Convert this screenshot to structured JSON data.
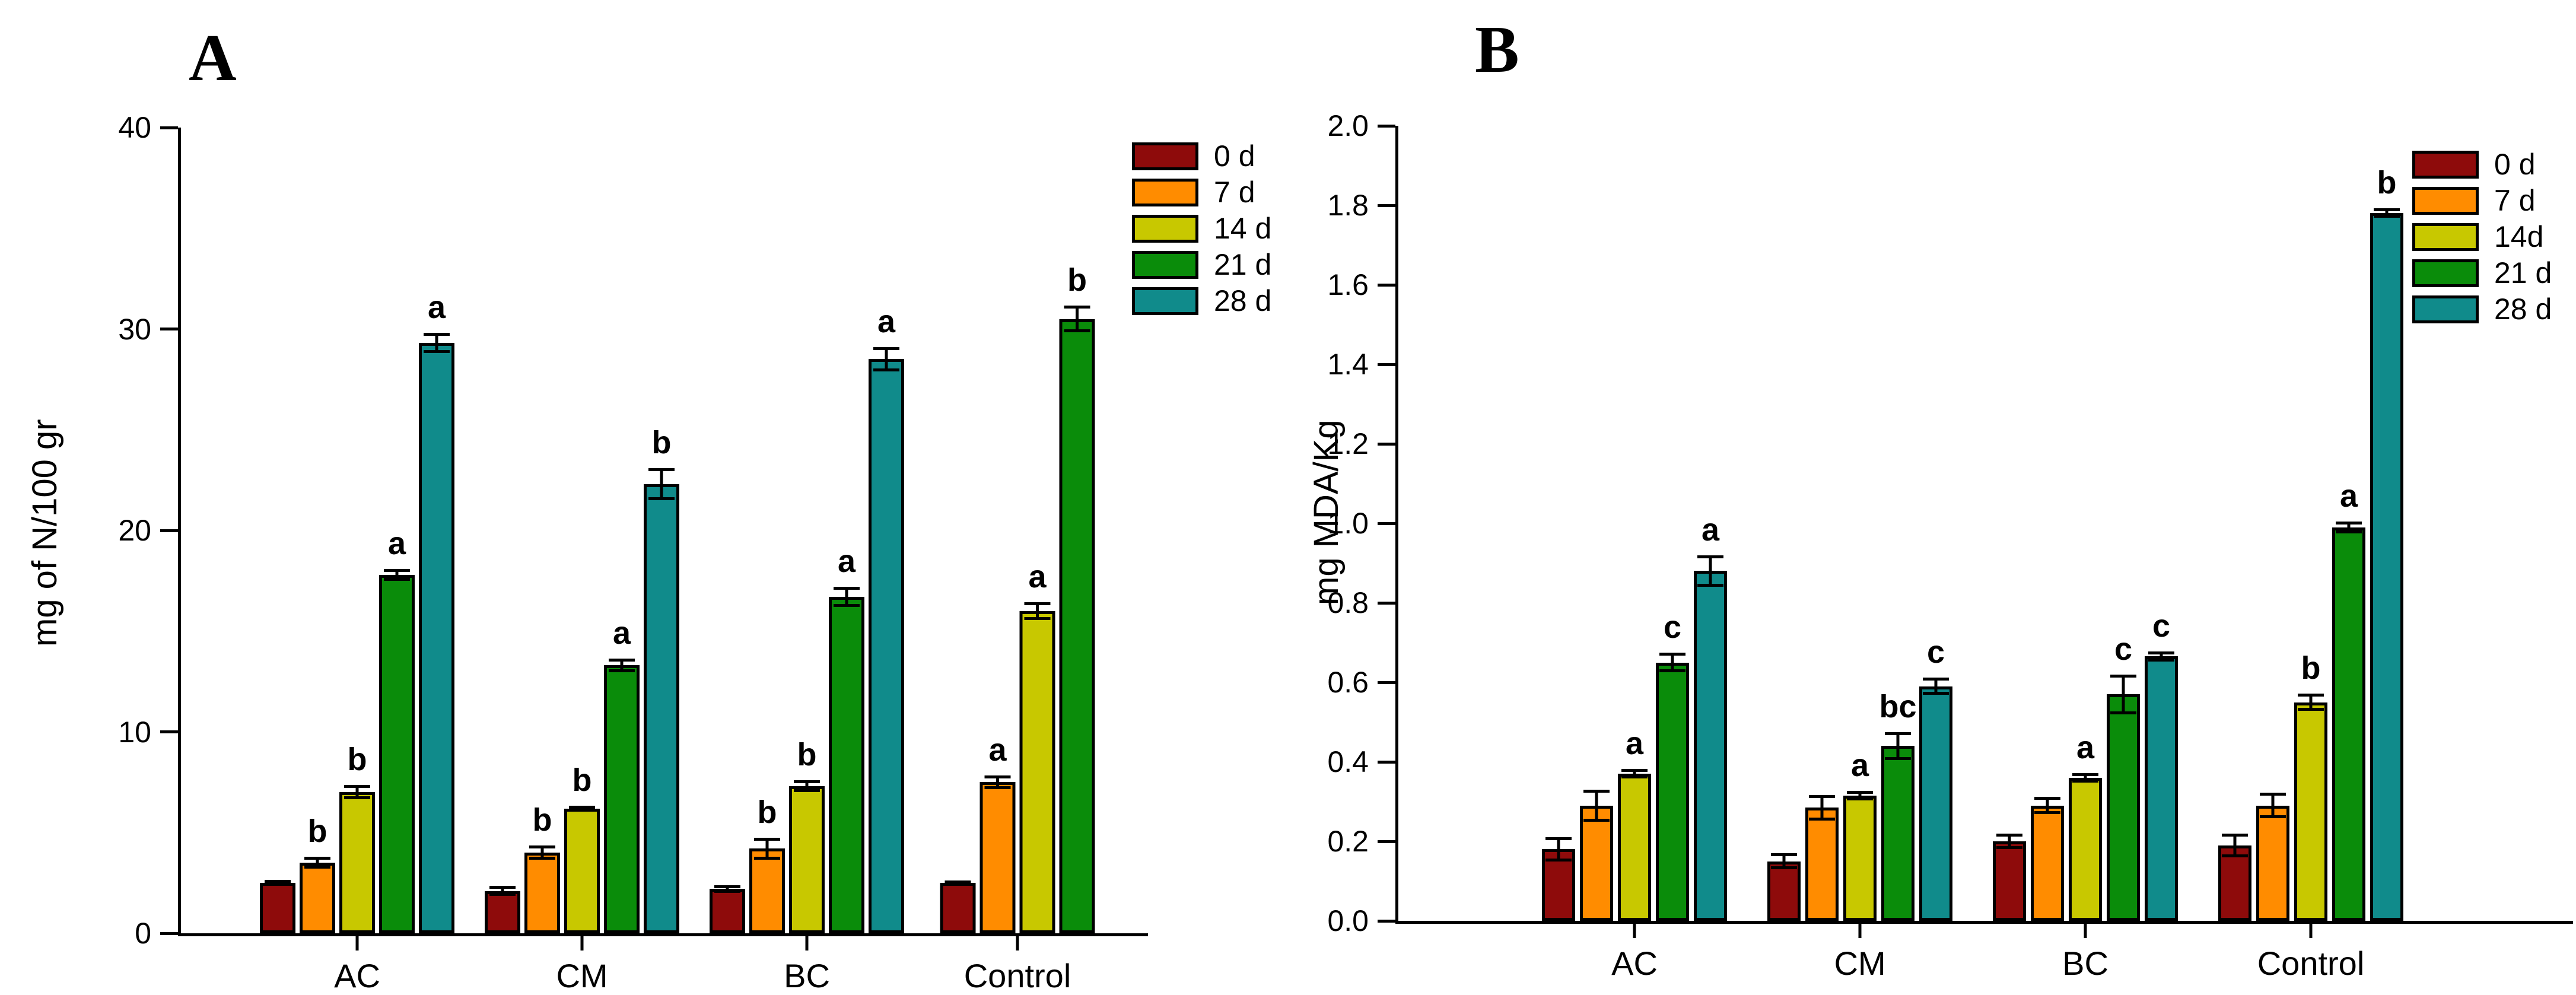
{
  "chart_data": [
    {
      "type": "bar",
      "panel": "A",
      "title": "A",
      "ylabel": "mg of N/100 gr",
      "xlabel": "",
      "ylim": [
        0,
        40
      ],
      "y_ticks": [
        "0",
        "10",
        "20",
        "30",
        "40"
      ],
      "y_tick_values": [
        0,
        10,
        20,
        30,
        40
      ],
      "categories": [
        "AC",
        "CM",
        "BC",
        "Control"
      ],
      "grid": false,
      "legend_position": "top-right",
      "series": [
        {
          "name": "0 d",
          "color": "#8E0B0B",
          "values": [
            2.5,
            2.1,
            2.2,
            2.5
          ],
          "errors": [
            0.15,
            0.25,
            0.2,
            0.12
          ],
          "letters": [
            "",
            "",
            "",
            ""
          ]
        },
        {
          "name": "7 d",
          "color": "#FF8C00",
          "values": [
            3.5,
            4.0,
            4.2,
            7.5
          ],
          "errors": [
            0.3,
            0.35,
            0.55,
            0.35
          ],
          "letters": [
            "b",
            "b",
            "b",
            "a"
          ]
        },
        {
          "name": "14 d",
          "color": "#C8C800",
          "values": [
            7.0,
            6.2,
            7.3,
            16.0
          ],
          "errors": [
            0.35,
            0.12,
            0.3,
            0.45
          ],
          "letters": [
            "b",
            "b",
            "b",
            "a"
          ]
        },
        {
          "name": "21 d",
          "color": "#0A8C0A",
          "values": [
            17.8,
            13.3,
            16.7,
            30.5
          ],
          "errors": [
            0.3,
            0.35,
            0.5,
            0.65
          ],
          "letters": [
            "a",
            "a",
            "a",
            "b"
          ]
        },
        {
          "name": "28 d",
          "color": "#108B8B",
          "values": [
            29.3,
            22.3,
            28.5,
            null
          ],
          "errors": [
            0.5,
            0.8,
            0.6,
            null
          ],
          "letters": [
            "a",
            "b",
            "a",
            ""
          ]
        }
      ]
    },
    {
      "type": "bar",
      "panel": "B",
      "title": "B",
      "ylabel": "mg MDA/Kg",
      "xlabel": "",
      "ylim": [
        0,
        2.0
      ],
      "y_ticks": [
        "0.0",
        "0.2",
        "0.4",
        "0.6",
        "0.8",
        "1.0",
        "1.2",
        "1.4",
        "1.6",
        "1.8",
        "2.0"
      ],
      "y_tick_values": [
        0,
        0.2,
        0.4,
        0.6,
        0.8,
        1.0,
        1.2,
        1.4,
        1.6,
        1.8,
        2.0
      ],
      "categories": [
        "AC",
        "CM",
        "BC",
        "Control"
      ],
      "grid": false,
      "legend_position": "top-right",
      "series": [
        {
          "name": "0 d",
          "color": "#8E0B0B",
          "values": [
            0.18,
            0.15,
            0.2,
            0.19
          ],
          "errors": [
            0.03,
            0.02,
            0.02,
            0.03
          ],
          "letters": [
            "",
            "",
            "",
            ""
          ]
        },
        {
          "name": "7 d",
          "color": "#FF8C00",
          "values": [
            0.29,
            0.285,
            0.29,
            0.29
          ],
          "errors": [
            0.04,
            0.032,
            0.022,
            0.032
          ],
          "letters": [
            "",
            "",
            "",
            ""
          ]
        },
        {
          "name": "14d",
          "color": "#C8C800",
          "values": [
            0.37,
            0.315,
            0.36,
            0.55
          ],
          "errors": [
            0.012,
            0.012,
            0.012,
            0.022
          ],
          "letters": [
            "a",
            "a",
            "a",
            "b"
          ]
        },
        {
          "name": "21 d",
          "color": "#0A8C0A",
          "values": [
            0.65,
            0.44,
            0.57,
            0.99
          ],
          "errors": [
            0.025,
            0.035,
            0.05,
            0.015
          ],
          "letters": [
            "c",
            "bc",
            "c",
            "a"
          ]
        },
        {
          "name": "28 d",
          "color": "#108B8B",
          "values": [
            0.88,
            0.59,
            0.665,
            1.78
          ],
          "errors": [
            0.04,
            0.022,
            0.012,
            0.012
          ],
          "letters": [
            "a",
            "c",
            "c",
            "b"
          ]
        }
      ]
    }
  ]
}
